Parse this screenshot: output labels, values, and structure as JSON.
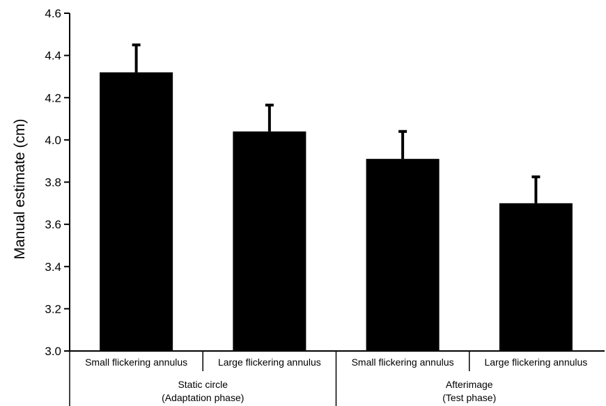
{
  "chart_data": {
    "type": "bar",
    "title": "",
    "xlabel": "",
    "ylabel": "Manual estimate (cm)",
    "ylim": [
      3.0,
      4.6
    ],
    "yticks": [
      "3.0",
      "3.2",
      "3.4",
      "3.6",
      "3.8",
      "4.0",
      "4.2",
      "4.4",
      "4.6"
    ],
    "grid": false,
    "categories": [
      "Small flickering annulus",
      "Large flickering annulus",
      "Small flickering annulus",
      "Large flickering annulus"
    ],
    "values": [
      4.32,
      4.04,
      3.91,
      3.7
    ],
    "error_upper": [
      0.13,
      0.125,
      0.13,
      0.125
    ],
    "groups": [
      {
        "line1": "Static circle",
        "line2": "(Adaptation phase)",
        "span": [
          0,
          1
        ]
      },
      {
        "line1": "Afterimage",
        "line2": "(Test phase)",
        "span": [
          2,
          3
        ]
      }
    ],
    "bar_color": "#000000"
  }
}
